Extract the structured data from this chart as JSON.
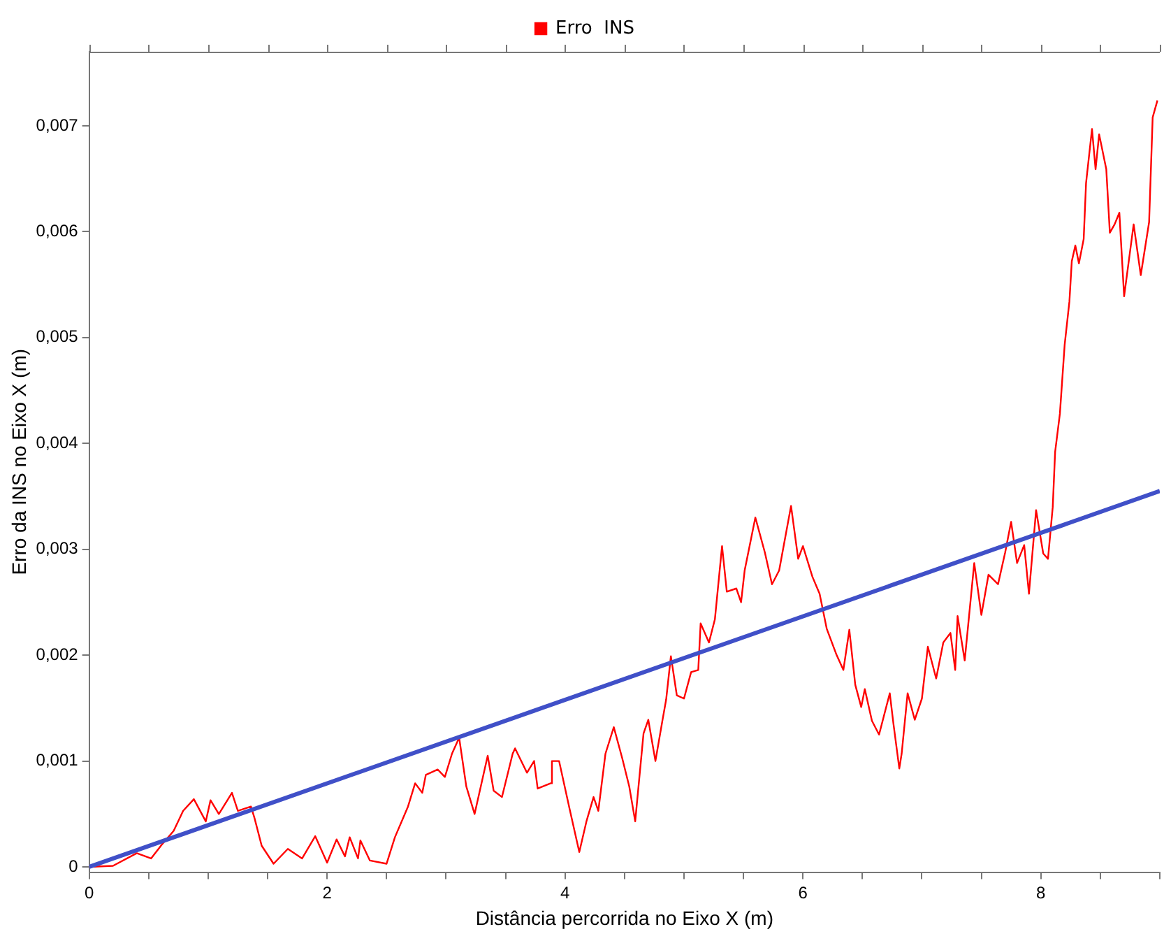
{
  "chart_data": {
    "type": "line",
    "xlabel": "Distância percorrida no Eixo X (m)",
    "ylabel": "Erro da INS no Eixo X (m)",
    "xlim": [
      0,
      9
    ],
    "ylim": [
      -5e-05,
      0.0077
    ],
    "xticks": [
      0,
      {
        "value": 0.5,
        "label": null
      },
      {
        "value": 1,
        "label": null
      },
      {
        "value": 1.5,
        "label": null
      },
      2,
      {
        "value": 2.5,
        "label": null
      },
      {
        "value": 3,
        "label": null
      },
      {
        "value": 3.5,
        "label": null
      },
      4,
      {
        "value": 4.5,
        "label": null
      },
      {
        "value": 5,
        "label": null
      },
      {
        "value": 5.5,
        "label": null
      },
      6,
      {
        "value": 6.5,
        "label": null
      },
      {
        "value": 7,
        "label": null
      },
      {
        "value": 7.5,
        "label": null
      },
      8,
      {
        "value": 8.5,
        "label": null
      },
      {
        "value": 9,
        "label": null
      }
    ],
    "yticks": [
      0,
      {
        "value": 0.001,
        "label": "0,001"
      },
      {
        "value": 0.002,
        "label": "0,002"
      },
      {
        "value": 0.003,
        "label": "0,003"
      },
      {
        "value": 0.004,
        "label": "0,004"
      },
      {
        "value": 0.005,
        "label": "0,005"
      },
      {
        "value": 0.006,
        "label": "0,006"
      },
      {
        "value": 0.007,
        "label": "0,007"
      }
    ],
    "grid": false,
    "legend": "top",
    "marker": "none",
    "line_style": "solid",
    "series": [
      {
        "name": "Erro  INS",
        "color": "#ff0000",
        "x": [
          0,
          0.2,
          0.4,
          0.52,
          0.61,
          0.71,
          0.79,
          0.88,
          0.98,
          1.02,
          1.09,
          1.2,
          1.25,
          1.36,
          1.39,
          1.45,
          1.55,
          1.67,
          1.79,
          1.9,
          2.0,
          2.08,
          2.15,
          2.19,
          2.26,
          2.28,
          2.36,
          2.5,
          2.57,
          2.68,
          2.74,
          2.8,
          2.83,
          2.93,
          2.99,
          3.05,
          3.11,
          3.17,
          3.24,
          3.35,
          3.4,
          3.47,
          3.56,
          3.58,
          3.68,
          3.74,
          3.77,
          3.88,
          3.89,
          3.95,
          4.04,
          4.12,
          4.18,
          4.24,
          4.28,
          4.34,
          4.41,
          4.48,
          4.54,
          4.59,
          4.66,
          4.7,
          4.76,
          4.82,
          4.85,
          4.89,
          4.94,
          5.0,
          5.06,
          5.12,
          5.14,
          5.21,
          5.26,
          5.32,
          5.36,
          5.44,
          5.48,
          5.51,
          5.6,
          5.68,
          5.74,
          5.8,
          5.9,
          5.96,
          6.0,
          6.08,
          6.14,
          6.2,
          6.28,
          6.34,
          6.39,
          6.44,
          6.49,
          6.52,
          6.58,
          6.64,
          6.73,
          6.76,
          6.81,
          6.83,
          6.88,
          6.94,
          7.0,
          7.05,
          7.12,
          7.18,
          7.24,
          7.28,
          7.3,
          7.36,
          7.44,
          7.5,
          7.56,
          7.64,
          7.7,
          7.75,
          7.8,
          7.86,
          7.9,
          7.96,
          8.02,
          8.06,
          8.1,
          8.12,
          8.16,
          8.2,
          8.24,
          8.26,
          8.29,
          8.32,
          8.36,
          8.38,
          8.43,
          8.46,
          8.49,
          8.55,
          8.58,
          8.62,
          8.66,
          8.7,
          8.78,
          8.84,
          8.91,
          8.94,
          8.98
        ],
        "values": [
          0,
          1e-05,
          0.00013,
          8e-05,
          0.00021,
          0.00034,
          0.00053,
          0.00064,
          0.00043,
          0.00063,
          0.0005,
          0.0007,
          0.00053,
          0.00057,
          0.00046,
          0.0002,
          3e-05,
          0.00017,
          8e-05,
          0.00029,
          4e-05,
          0.00026,
          0.0001,
          0.00028,
          8e-05,
          0.00025,
          6e-05,
          3e-05,
          0.00028,
          0.00057,
          0.00079,
          0.0007,
          0.00087,
          0.00092,
          0.00085,
          0.00107,
          0.00122,
          0.00076,
          0.0005,
          0.00105,
          0.00072,
          0.00066,
          0.00107,
          0.00112,
          0.00089,
          0.001,
          0.00074,
          0.00079,
          0.001,
          0.001,
          0.00054,
          0.00014,
          0.00043,
          0.00066,
          0.00053,
          0.00107,
          0.00132,
          0.00103,
          0.00076,
          0.00043,
          0.00126,
          0.00139,
          0.001,
          0.00139,
          0.00158,
          0.00199,
          0.00162,
          0.00159,
          0.00184,
          0.00186,
          0.0023,
          0.00212,
          0.00234,
          0.00303,
          0.0026,
          0.00263,
          0.0025,
          0.0028,
          0.0033,
          0.00297,
          0.00267,
          0.0028,
          0.00341,
          0.00291,
          0.00303,
          0.00274,
          0.00258,
          0.00225,
          0.00201,
          0.00186,
          0.00224,
          0.00172,
          0.00151,
          0.00168,
          0.00138,
          0.00125,
          0.00164,
          0.00136,
          0.00093,
          0.00107,
          0.00164,
          0.00139,
          0.00159,
          0.00208,
          0.00178,
          0.00212,
          0.00221,
          0.00186,
          0.00237,
          0.00195,
          0.00287,
          0.00238,
          0.00276,
          0.00267,
          0.00297,
          0.00326,
          0.00287,
          0.00304,
          0.00258,
          0.00337,
          0.00296,
          0.00291,
          0.0034,
          0.00392,
          0.00428,
          0.00493,
          0.00534,
          0.00572,
          0.00587,
          0.0057,
          0.00593,
          0.00646,
          0.00697,
          0.00659,
          0.00692,
          0.00659,
          0.00599,
          0.00607,
          0.00618,
          0.00539,
          0.00607,
          0.00559,
          0.00609,
          0.00708,
          0.00724
        ]
      },
      {
        "type": "line",
        "color": "#4050c8",
        "x": [
          0,
          9
        ],
        "values": [
          0,
          0.00355
        ]
      }
    ]
  }
}
